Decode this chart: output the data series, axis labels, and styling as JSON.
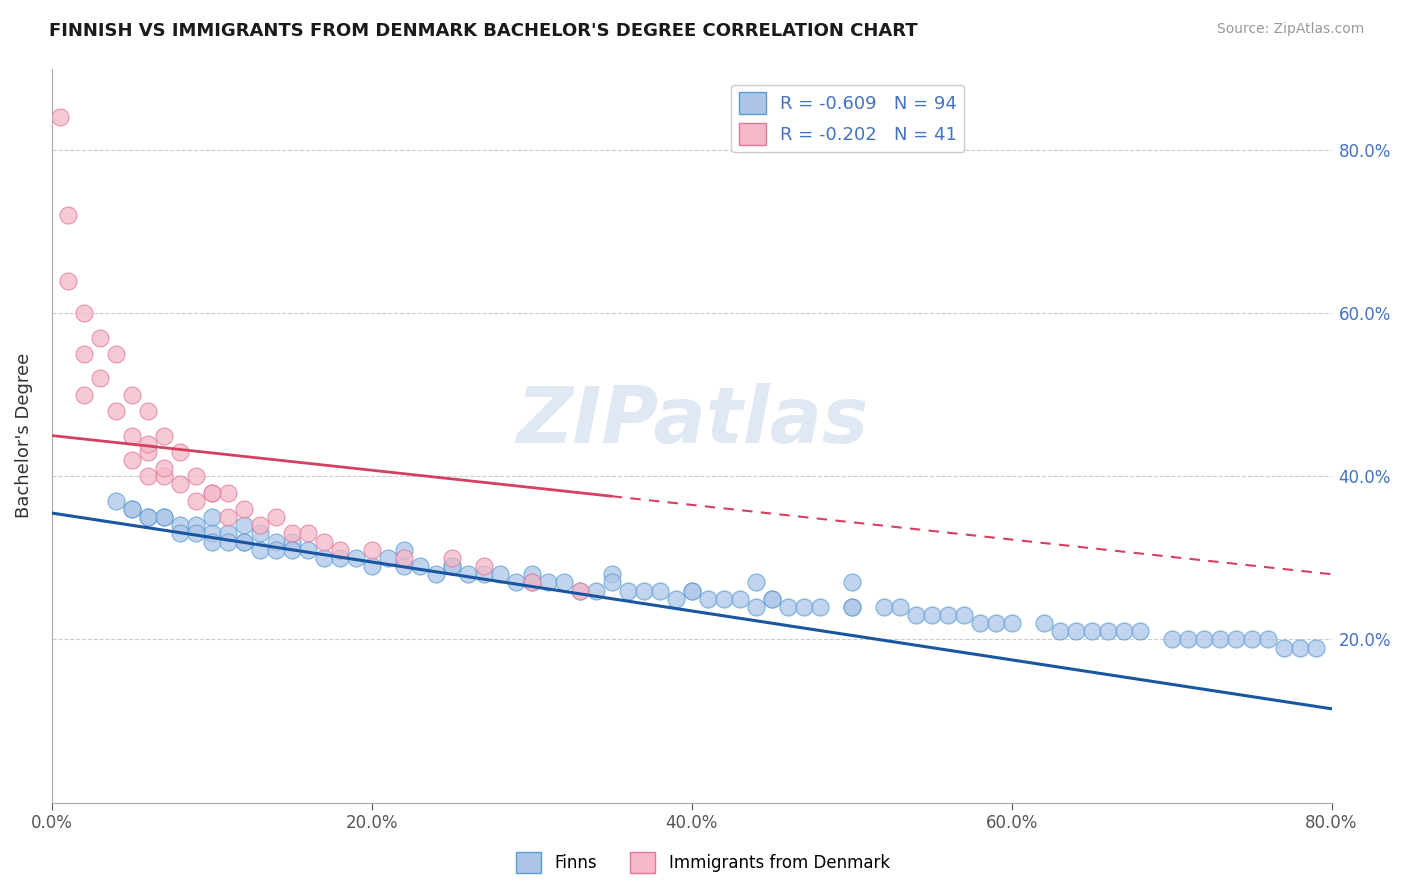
{
  "title": "FINNISH VS IMMIGRANTS FROM DENMARK BACHELOR'S DEGREE CORRELATION CHART",
  "source": "Source: ZipAtlas.com",
  "ylabel": "Bachelor's Degree",
  "xlim": [
    0.0,
    0.8
  ],
  "ylim": [
    0.0,
    0.9
  ],
  "xtick_labels": [
    "0.0%",
    "20.0%",
    "40.0%",
    "60.0%",
    "80.0%"
  ],
  "xtick_vals": [
    0.0,
    0.2,
    0.4,
    0.6,
    0.8
  ],
  "ytick_labels": [
    "20.0%",
    "40.0%",
    "60.0%",
    "80.0%"
  ],
  "ytick_vals": [
    0.2,
    0.4,
    0.6,
    0.8
  ],
  "finns_color": "#adc6e8",
  "denmark_color": "#f5b8c8",
  "finns_edge_color": "#5b9bd5",
  "denmark_edge_color": "#e07898",
  "trendline_finns_color": "#1a56a0",
  "trendline_denmark_color": "#d44060",
  "finns_R": -0.609,
  "finns_N": 94,
  "denmark_R": -0.202,
  "denmark_N": 41,
  "watermark": "ZIPatlas",
  "finns_x": [
    0.04,
    0.05,
    0.06,
    0.07,
    0.08,
    0.09,
    0.1,
    0.1,
    0.11,
    0.12,
    0.12,
    0.13,
    0.14,
    0.15,
    0.15,
    0.16,
    0.17,
    0.18,
    0.19,
    0.2,
    0.21,
    0.22,
    0.22,
    0.23,
    0.24,
    0.25,
    0.26,
    0.27,
    0.28,
    0.29,
    0.3,
    0.31,
    0.32,
    0.33,
    0.34,
    0.35,
    0.36,
    0.37,
    0.38,
    0.39,
    0.4,
    0.41,
    0.42,
    0.43,
    0.44,
    0.44,
    0.45,
    0.46,
    0.47,
    0.48,
    0.5,
    0.5,
    0.52,
    0.53,
    0.54,
    0.55,
    0.56,
    0.57,
    0.58,
    0.59,
    0.6,
    0.62,
    0.63,
    0.64,
    0.65,
    0.66,
    0.67,
    0.68,
    0.7,
    0.71,
    0.72,
    0.73,
    0.74,
    0.75,
    0.76,
    0.77,
    0.78,
    0.79,
    0.1,
    0.11,
    0.12,
    0.13,
    0.14,
    0.08,
    0.09,
    0.07,
    0.06,
    0.05,
    0.25,
    0.3,
    0.35,
    0.4,
    0.45,
    0.5
  ],
  "finns_y": [
    0.37,
    0.36,
    0.35,
    0.35,
    0.34,
    0.34,
    0.33,
    0.35,
    0.33,
    0.32,
    0.34,
    0.33,
    0.32,
    0.32,
    0.31,
    0.31,
    0.3,
    0.3,
    0.3,
    0.29,
    0.3,
    0.29,
    0.31,
    0.29,
    0.28,
    0.29,
    0.28,
    0.28,
    0.28,
    0.27,
    0.27,
    0.27,
    0.27,
    0.26,
    0.26,
    0.28,
    0.26,
    0.26,
    0.26,
    0.25,
    0.26,
    0.25,
    0.25,
    0.25,
    0.24,
    0.27,
    0.25,
    0.24,
    0.24,
    0.24,
    0.24,
    0.27,
    0.24,
    0.24,
    0.23,
    0.23,
    0.23,
    0.23,
    0.22,
    0.22,
    0.22,
    0.22,
    0.21,
    0.21,
    0.21,
    0.21,
    0.21,
    0.21,
    0.2,
    0.2,
    0.2,
    0.2,
    0.2,
    0.2,
    0.2,
    0.19,
    0.19,
    0.19,
    0.32,
    0.32,
    0.32,
    0.31,
    0.31,
    0.33,
    0.33,
    0.35,
    0.35,
    0.36,
    0.29,
    0.28,
    0.27,
    0.26,
    0.25,
    0.24
  ],
  "denmark_x": [
    0.005,
    0.01,
    0.01,
    0.02,
    0.02,
    0.02,
    0.03,
    0.03,
    0.04,
    0.04,
    0.05,
    0.05,
    0.05,
    0.06,
    0.06,
    0.06,
    0.07,
    0.07,
    0.08,
    0.08,
    0.09,
    0.09,
    0.1,
    0.11,
    0.11,
    0.12,
    0.13,
    0.14,
    0.15,
    0.16,
    0.17,
    0.18,
    0.2,
    0.22,
    0.25,
    0.27,
    0.3,
    0.33,
    0.06,
    0.07,
    0.1
  ],
  "denmark_y": [
    0.84,
    0.72,
    0.64,
    0.6,
    0.55,
    0.5,
    0.57,
    0.52,
    0.55,
    0.48,
    0.5,
    0.45,
    0.42,
    0.48,
    0.43,
    0.4,
    0.45,
    0.4,
    0.43,
    0.39,
    0.4,
    0.37,
    0.38,
    0.38,
    0.35,
    0.36,
    0.34,
    0.35,
    0.33,
    0.33,
    0.32,
    0.31,
    0.31,
    0.3,
    0.3,
    0.29,
    0.27,
    0.26,
    0.44,
    0.41,
    0.38
  ],
  "trendline_finns_x0": 0.0,
  "trendline_finns_x1": 0.8,
  "trendline_finns_y0": 0.355,
  "trendline_finns_y1": 0.115,
  "trendline_denmark_x0": 0.0,
  "trendline_denmark_x1": 0.8,
  "trendline_denmark_y0": 0.45,
  "trendline_denmark_y1": 0.28,
  "grid_color": "#cccccc",
  "grid_linestyle": "--"
}
